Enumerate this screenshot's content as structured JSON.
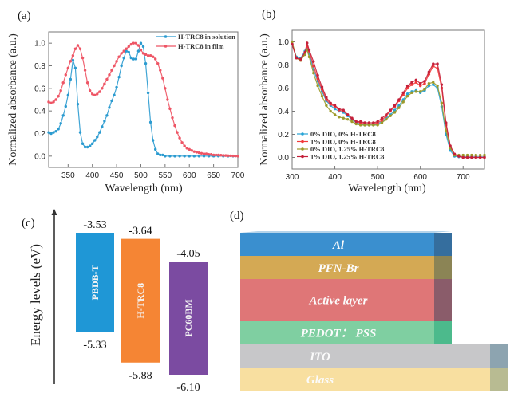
{
  "chart_data": [
    {
      "id": "a",
      "panel_label": "(a)",
      "type": "line",
      "title": "",
      "xlabel": "Wavelength (nm)",
      "ylabel": "Normalized absorbance (a.u.)",
      "xlim": [
        310,
        700
      ],
      "ylim": [
        -0.1,
        1.1
      ],
      "xticks": [
        350,
        400,
        450,
        500,
        550,
        600,
        650,
        700
      ],
      "yticks": [
        0.0,
        0.2,
        0.4,
        0.6,
        0.8,
        1.0
      ],
      "ytick_labels": [
        "0.0",
        "0.2",
        "0.4",
        "0.6",
        "0.8",
        "1.0"
      ],
      "grid": false,
      "legend": "top-right",
      "series": [
        {
          "name": "H-TRC8 in solution",
          "color": "#2b9bd0",
          "x": [
            310,
            315,
            320,
            325,
            330,
            335,
            340,
            345,
            350,
            355,
            360,
            365,
            370,
            375,
            380,
            385,
            390,
            395,
            400,
            405,
            410,
            415,
            420,
            425,
            430,
            435,
            440,
            445,
            450,
            455,
            460,
            465,
            470,
            475,
            480,
            485,
            490,
            495,
            500,
            505,
            510,
            515,
            520,
            525,
            530,
            535,
            540,
            545,
            550,
            560,
            570,
            580,
            590,
            600,
            610,
            620,
            630,
            640,
            650,
            660,
            670,
            680,
            690,
            700
          ],
          "y": [
            0.21,
            0.2,
            0.21,
            0.22,
            0.24,
            0.29,
            0.36,
            0.44,
            0.54,
            0.68,
            0.85,
            0.78,
            0.46,
            0.21,
            0.11,
            0.08,
            0.08,
            0.09,
            0.11,
            0.14,
            0.17,
            0.21,
            0.26,
            0.31,
            0.36,
            0.43,
            0.49,
            0.54,
            0.61,
            0.7,
            0.8,
            0.87,
            0.93,
            0.92,
            0.87,
            0.86,
            0.86,
            0.93,
            1.0,
            0.97,
            0.82,
            0.56,
            0.3,
            0.14,
            0.06,
            0.02,
            0.01,
            0.01,
            0.0,
            0.0,
            0.0,
            0.0,
            0.0,
            0.0,
            0.0,
            0.0,
            0.0,
            0.0,
            0.0,
            0.0,
            0.0,
            0.0,
            0.0,
            0.0
          ]
        },
        {
          "name": "H-TRC8 in film",
          "color": "#ee5565",
          "x": [
            310,
            315,
            320,
            325,
            330,
            335,
            340,
            345,
            350,
            355,
            360,
            365,
            370,
            375,
            380,
            385,
            390,
            395,
            400,
            405,
            410,
            415,
            420,
            425,
            430,
            435,
            440,
            445,
            450,
            455,
            460,
            465,
            470,
            475,
            480,
            485,
            490,
            495,
            500,
            505,
            510,
            515,
            520,
            525,
            530,
            535,
            540,
            545,
            550,
            555,
            560,
            565,
            570,
            575,
            580,
            585,
            590,
            595,
            600,
            605,
            610,
            615,
            620,
            625,
            630,
            635,
            640,
            645,
            650,
            655,
            660,
            665,
            670,
            675,
            680,
            685,
            690,
            695,
            700
          ],
          "y": [
            0.48,
            0.47,
            0.48,
            0.5,
            0.53,
            0.58,
            0.65,
            0.72,
            0.78,
            0.84,
            0.89,
            0.95,
            0.98,
            0.95,
            0.87,
            0.76,
            0.65,
            0.58,
            0.55,
            0.54,
            0.55,
            0.57,
            0.6,
            0.64,
            0.68,
            0.72,
            0.76,
            0.8,
            0.84,
            0.88,
            0.91,
            0.93,
            0.95,
            0.97,
            0.99,
            1.0,
            1.0,
            0.98,
            0.94,
            0.91,
            0.9,
            0.89,
            0.89,
            0.88,
            0.86,
            0.82,
            0.76,
            0.69,
            0.6,
            0.5,
            0.42,
            0.34,
            0.27,
            0.21,
            0.16,
            0.12,
            0.09,
            0.07,
            0.06,
            0.05,
            0.04,
            0.035,
            0.03,
            0.025,
            0.02,
            0.02,
            0.015,
            0.015,
            0.01,
            0.01,
            0.01,
            0.008,
            0.006,
            0.005,
            0.004,
            0.003,
            0.002,
            0.001,
            0.0
          ]
        }
      ]
    },
    {
      "id": "b",
      "panel_label": "(b)",
      "type": "line",
      "title": "",
      "xlabel": "Wavelength (nm)",
      "ylabel": "Normalized absorbance (a.u.)",
      "xlim": [
        300,
        750
      ],
      "ylim": [
        -0.1,
        1.1
      ],
      "xticks": [
        300,
        400,
        500,
        600,
        700
      ],
      "yticks": [
        0.0,
        0.2,
        0.4,
        0.6,
        0.8,
        1.0
      ],
      "ytick_labels": [
        "0.0",
        "0.2",
        "0.4",
        "0.6",
        "0.8",
        "1.0"
      ],
      "grid": false,
      "legend": "bottom-left",
      "x": [
        300,
        310,
        320,
        330,
        335,
        340,
        350,
        360,
        370,
        380,
        390,
        400,
        410,
        420,
        430,
        440,
        450,
        460,
        470,
        480,
        490,
        500,
        510,
        520,
        530,
        540,
        550,
        560,
        570,
        580,
        590,
        600,
        610,
        620,
        630,
        640,
        650,
        660,
        670,
        680,
        690,
        700,
        710,
        720,
        730,
        740,
        750
      ],
      "series": [
        {
          "name": "0% DIO, 0% H-TRC8",
          "color": "#27a3d6",
          "y": [
            0.98,
            0.87,
            0.86,
            0.92,
            0.95,
            0.9,
            0.76,
            0.66,
            0.57,
            0.49,
            0.45,
            0.42,
            0.4,
            0.39,
            0.36,
            0.33,
            0.3,
            0.29,
            0.28,
            0.28,
            0.28,
            0.29,
            0.31,
            0.34,
            0.37,
            0.41,
            0.45,
            0.5,
            0.55,
            0.57,
            0.58,
            0.56,
            0.58,
            0.62,
            0.63,
            0.6,
            0.44,
            0.2,
            0.06,
            0.01,
            0.005,
            0.005,
            0.005,
            0.005,
            0.005,
            0.005,
            0.005
          ]
        },
        {
          "name": "1% DIO, 0% H-TRC8",
          "color": "#f23a3a",
          "y": [
            0.98,
            0.86,
            0.84,
            0.9,
            0.96,
            0.92,
            0.79,
            0.68,
            0.59,
            0.5,
            0.46,
            0.44,
            0.41,
            0.4,
            0.37,
            0.34,
            0.31,
            0.3,
            0.29,
            0.29,
            0.29,
            0.3,
            0.32,
            0.36,
            0.4,
            0.44,
            0.49,
            0.54,
            0.6,
            0.63,
            0.65,
            0.62,
            0.64,
            0.72,
            0.79,
            0.77,
            0.6,
            0.28,
            0.09,
            0.02,
            0.01,
            0.0,
            0.0,
            0.0,
            0.0,
            0.0,
            0.0
          ]
        },
        {
          "name": "0% DIO, 1.25% H-TRC8",
          "color": "#9c9a2a",
          "y": [
            1.0,
            0.86,
            0.84,
            0.89,
            0.93,
            0.87,
            0.73,
            0.62,
            0.53,
            0.45,
            0.4,
            0.37,
            0.35,
            0.34,
            0.33,
            0.31,
            0.29,
            0.28,
            0.28,
            0.28,
            0.28,
            0.28,
            0.3,
            0.33,
            0.36,
            0.39,
            0.43,
            0.48,
            0.53,
            0.56,
            0.57,
            0.57,
            0.59,
            0.64,
            0.65,
            0.62,
            0.47,
            0.23,
            0.08,
            0.02,
            0.02,
            0.02,
            0.02,
            0.02,
            0.02,
            0.02,
            0.02
          ]
        },
        {
          "name": "1% DIO, 1.25% H-TRC8",
          "color": "#c4203a",
          "y": [
            0.98,
            0.86,
            0.85,
            0.91,
            0.99,
            0.93,
            0.83,
            0.71,
            0.61,
            0.52,
            0.47,
            0.45,
            0.42,
            0.41,
            0.37,
            0.34,
            0.31,
            0.31,
            0.3,
            0.3,
            0.3,
            0.31,
            0.34,
            0.37,
            0.41,
            0.45,
            0.5,
            0.56,
            0.62,
            0.65,
            0.67,
            0.64,
            0.66,
            0.74,
            0.81,
            0.81,
            0.63,
            0.3,
            0.1,
            0.03,
            0.01,
            0.0,
            0.0,
            0.0,
            0.0,
            0.0,
            0.0
          ]
        }
      ]
    },
    {
      "id": "c",
      "panel_label": "(c)",
      "type": "bar",
      "ylabel": "Energy levels (eV)",
      "categories": [
        "PBDB-T",
        "H-TRC8",
        "PC60BM"
      ],
      "lumo": [
        -3.53,
        -3.64,
        -4.05
      ],
      "homo": [
        -5.33,
        -5.88,
        -6.1
      ],
      "lumo_labels": [
        "-3.53",
        "-3.64",
        "-4.05"
      ],
      "homo_labels": [
        "-5.33",
        "-5.88",
        "-6.10"
      ],
      "colors": [
        "#1f97d6",
        "#f58534",
        "#7b4ba1"
      ],
      "ylim": [
        -6.3,
        -3.3
      ]
    }
  ],
  "panel_d": {
    "panel_label": "(d)",
    "layers": [
      {
        "label": "Al",
        "color": "#3a8fcf",
        "side": "#356e9e"
      },
      {
        "label": "PFN-Br",
        "color": "#d4a954",
        "side": "#8b8455"
      },
      {
        "label": "Active layer",
        "color": "#df7677",
        "side": "#8a5c6a"
      },
      {
        "label": "PEDOT： PSS",
        "color": "#7fcfa1",
        "side": "#4cba8c"
      },
      {
        "label": "ITO",
        "color": "#c7c7c9",
        "side": "#8da4b0"
      },
      {
        "label": "Glass",
        "color": "#f8dfa0",
        "side": "#b8bb92"
      }
    ]
  }
}
